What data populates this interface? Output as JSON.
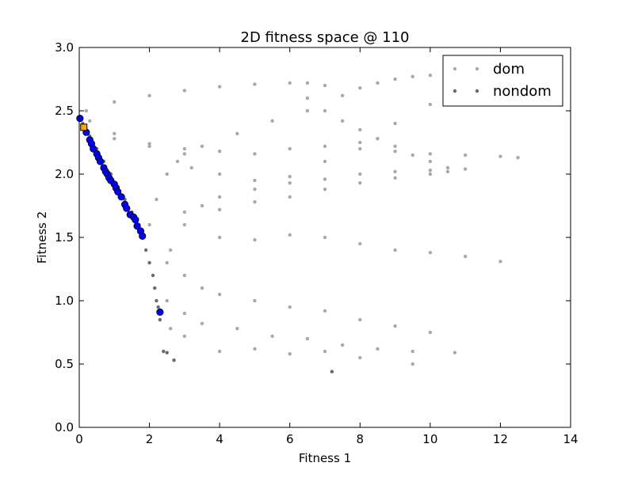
{
  "chart_data": {
    "type": "scatter",
    "title": "2D fitness space @ 110",
    "xlabel": "Fitness 1",
    "ylabel": "Fitness 2",
    "xlim": [
      0,
      14
    ],
    "ylim": [
      0.0,
      3.0
    ],
    "xticks": [
      "0",
      "2",
      "4",
      "6",
      "8",
      "10",
      "12",
      "14"
    ],
    "yticks": [
      "0.0",
      "0.5",
      "1.0",
      "1.5",
      "2.0",
      "2.5",
      "3.0"
    ],
    "legend_position": "top-right",
    "grid": false,
    "series": [
      {
        "name": "dom",
        "color": "#a8a8a8",
        "points": [
          [
            0.2,
            2.5
          ],
          [
            1.0,
            2.57
          ],
          [
            2.0,
            2.62
          ],
          [
            3.0,
            2.66
          ],
          [
            4.0,
            2.69
          ],
          [
            5.0,
            2.71
          ],
          [
            6.0,
            2.72
          ],
          [
            6.5,
            2.72
          ],
          [
            7.0,
            2.7
          ],
          [
            7.5,
            2.62
          ],
          [
            8.0,
            2.68
          ],
          [
            8.5,
            2.72
          ],
          [
            9.0,
            2.75
          ],
          [
            9.5,
            2.77
          ],
          [
            10.0,
            2.78
          ],
          [
            10.5,
            2.78
          ],
          [
            6.5,
            2.6
          ],
          [
            7.0,
            2.5
          ],
          [
            7.5,
            2.42
          ],
          [
            8.0,
            2.35
          ],
          [
            8.5,
            2.28
          ],
          [
            9.0,
            2.22
          ],
          [
            9.5,
            2.15
          ],
          [
            10.0,
            2.1
          ],
          [
            10.5,
            2.05
          ],
          [
            0.3,
            2.42
          ],
          [
            1.0,
            2.32
          ],
          [
            2.0,
            2.22
          ],
          [
            3.0,
            2.16
          ],
          [
            3.5,
            2.22
          ],
          [
            4.5,
            2.32
          ],
          [
            5.5,
            2.42
          ],
          [
            6.5,
            2.5
          ],
          [
            1.0,
            2.28
          ],
          [
            2.0,
            2.24
          ],
          [
            3.0,
            2.2
          ],
          [
            4.0,
            2.18
          ],
          [
            5.0,
            2.16
          ],
          [
            6.0,
            2.2
          ],
          [
            7.0,
            2.22
          ],
          [
            8.0,
            2.2
          ],
          [
            9.0,
            2.18
          ],
          [
            10.0,
            2.16
          ],
          [
            11.0,
            2.15
          ],
          [
            12.0,
            2.14
          ],
          [
            12.5,
            2.13
          ],
          [
            3.0,
            1.7
          ],
          [
            4.0,
            1.72
          ],
          [
            5.0,
            1.78
          ],
          [
            6.0,
            1.82
          ],
          [
            7.0,
            1.88
          ],
          [
            8.0,
            1.93
          ],
          [
            9.0,
            1.97
          ],
          [
            10.0,
            2.0
          ],
          [
            10.5,
            2.02
          ],
          [
            2.6,
            1.4
          ],
          [
            3.0,
            1.6
          ],
          [
            3.5,
            1.75
          ],
          [
            4.0,
            1.82
          ],
          [
            5.0,
            1.88
          ],
          [
            6.0,
            1.93
          ],
          [
            7.0,
            1.96
          ],
          [
            8.0,
            2.0
          ],
          [
            9.0,
            2.02
          ],
          [
            10.0,
            2.03
          ],
          [
            11.0,
            2.04
          ],
          [
            4.0,
            1.5
          ],
          [
            5.0,
            1.48
          ],
          [
            6.0,
            1.52
          ],
          [
            7.0,
            1.5
          ],
          [
            8.0,
            1.45
          ],
          [
            9.0,
            1.4
          ],
          [
            10.0,
            1.38
          ],
          [
            11.0,
            1.35
          ],
          [
            12.0,
            1.31
          ],
          [
            2.5,
            1.3
          ],
          [
            3.0,
            1.2
          ],
          [
            3.5,
            1.1
          ],
          [
            4.0,
            1.05
          ],
          [
            5.0,
            1.0
          ],
          [
            6.0,
            0.95
          ],
          [
            7.0,
            0.92
          ],
          [
            8.0,
            0.85
          ],
          [
            9.0,
            0.8
          ],
          [
            10.0,
            0.75
          ],
          [
            2.5,
            1.0
          ],
          [
            3.0,
            0.9
          ],
          [
            3.5,
            0.82
          ],
          [
            4.5,
            0.78
          ],
          [
            5.5,
            0.72
          ],
          [
            6.5,
            0.7
          ],
          [
            7.5,
            0.65
          ],
          [
            8.5,
            0.62
          ],
          [
            9.5,
            0.6
          ],
          [
            2.3,
            0.85
          ],
          [
            2.6,
            0.78
          ],
          [
            3.0,
            0.72
          ],
          [
            4.0,
            0.6
          ],
          [
            5.0,
            0.62
          ],
          [
            6.0,
            0.58
          ],
          [
            7.0,
            0.6
          ],
          [
            8.0,
            0.55
          ],
          [
            9.5,
            0.5
          ],
          [
            10.7,
            0.59
          ],
          [
            2.0,
            1.6
          ],
          [
            2.2,
            1.8
          ],
          [
            2.5,
            2.0
          ],
          [
            2.8,
            2.1
          ],
          [
            3.2,
            2.05
          ],
          [
            4.0,
            2.0
          ],
          [
            5.0,
            1.95
          ],
          [
            6.0,
            1.98
          ],
          [
            7.0,
            2.1
          ],
          [
            8.0,
            2.25
          ],
          [
            9.0,
            2.4
          ],
          [
            10.0,
            2.55
          ]
        ]
      },
      {
        "name": "nondom",
        "color": "#696969",
        "points": [
          [
            0.1,
            2.4
          ],
          [
            0.3,
            2.3
          ],
          [
            0.5,
            2.2
          ],
          [
            0.7,
            2.1
          ],
          [
            0.9,
            2.0
          ],
          [
            1.1,
            1.9
          ],
          [
            1.3,
            1.8
          ],
          [
            1.5,
            1.7
          ],
          [
            1.7,
            1.6
          ],
          [
            1.8,
            1.5
          ],
          [
            1.9,
            1.4
          ],
          [
            2.0,
            1.3
          ],
          [
            2.1,
            1.2
          ],
          [
            2.15,
            1.1
          ],
          [
            2.2,
            1.0
          ],
          [
            2.25,
            0.95
          ],
          [
            2.3,
            0.85
          ],
          [
            2.4,
            0.6
          ],
          [
            2.5,
            0.59
          ],
          [
            2.7,
            0.53
          ],
          [
            7.2,
            0.44
          ]
        ]
      },
      {
        "color": "#0000ff",
        "points": [
          [
            0.02,
            2.44
          ],
          [
            0.2,
            2.33
          ],
          [
            0.3,
            2.27
          ],
          [
            0.35,
            2.24
          ],
          [
            0.4,
            2.2
          ],
          [
            0.5,
            2.16
          ],
          [
            0.55,
            2.13
          ],
          [
            0.6,
            2.1
          ],
          [
            0.7,
            2.05
          ],
          [
            0.75,
            2.02
          ],
          [
            0.8,
            2.0
          ],
          [
            0.85,
            1.97
          ],
          [
            0.9,
            1.95
          ],
          [
            1.0,
            1.92
          ],
          [
            1.05,
            1.89
          ],
          [
            1.1,
            1.86
          ],
          [
            1.2,
            1.82
          ],
          [
            1.3,
            1.76
          ],
          [
            1.35,
            1.73
          ],
          [
            1.45,
            1.68
          ],
          [
            1.55,
            1.66
          ],
          [
            1.6,
            1.64
          ],
          [
            1.65,
            1.59
          ],
          [
            1.75,
            1.55
          ],
          [
            1.8,
            1.51
          ],
          [
            2.3,
            0.91
          ]
        ]
      },
      {
        "color": "#ffa500",
        "marker": "square",
        "points": [
          [
            0.13,
            2.37
          ]
        ]
      }
    ]
  }
}
